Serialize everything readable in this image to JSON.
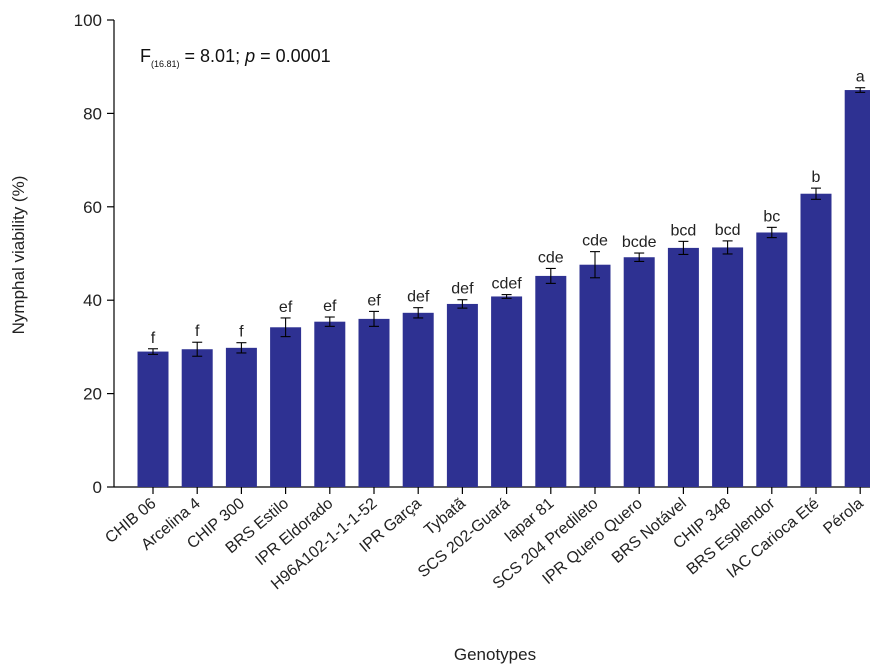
{
  "chart_data": {
    "type": "bar",
    "xlabel": "Genotypes",
    "ylabel": "Nymphal viability (%)",
    "ylim": [
      0,
      100
    ],
    "yticks": [
      0,
      20,
      40,
      60,
      80,
      100
    ],
    "grid": false,
    "bar_color": "#2e3192",
    "stat_annotation": {
      "f_label": "F",
      "f_subscript": "(16.81)",
      "f_value": " = 8.01; ",
      "p_label": "p",
      "p_value": " = 0.0001"
    },
    "categories": [
      "CHIB 06",
      "Arcelina 4",
      "CHIP 300",
      "BRS Estilo",
      "IPR Eldorado",
      "H96A102-1-1-1-52",
      "IPR Garça",
      "Tybatã",
      "SCS 202-Guará",
      "Iapar 81",
      "SCS 204 Predileto",
      "IPR Quero Quero",
      "BRS Notável",
      "CHIP 348",
      "BRS Esplendor",
      "IAC Carioca Eté",
      "Pérola"
    ],
    "values": [
      29.0,
      29.5,
      29.8,
      34.2,
      35.4,
      36.0,
      37.3,
      39.2,
      40.8,
      45.2,
      47.6,
      49.2,
      51.2,
      51.3,
      54.5,
      62.8,
      85.0
    ],
    "errors": [
      0.6,
      1.5,
      1.1,
      2.0,
      1.0,
      1.6,
      1.1,
      0.9,
      0.4,
      1.6,
      2.8,
      0.9,
      1.4,
      1.4,
      1.1,
      1.2,
      0.5
    ],
    "significance": [
      "f",
      "f",
      "f",
      "ef",
      "ef",
      "ef",
      "def",
      "def",
      "cdef",
      "cde",
      "cde",
      "bcde",
      "bcd",
      "bcd",
      "bc",
      "b",
      "a"
    ]
  }
}
